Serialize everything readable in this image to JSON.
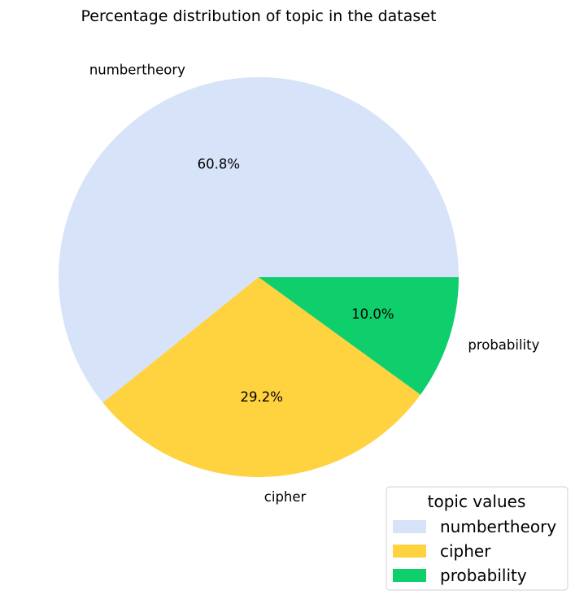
{
  "chart_data": {
    "type": "pie",
    "title": "Percentage distribution of topic in the dataset",
    "categories": [
      "numbertheory",
      "cipher",
      "probability"
    ],
    "values": [
      60.8,
      29.2,
      10.0
    ],
    "value_labels": [
      "60.8%",
      "29.2%",
      "10.0%"
    ],
    "colors": [
      "#d7e3f8",
      "#ffd23f",
      "#0ecf6b"
    ],
    "legend": {
      "title": "topic values",
      "position": "bottom-right",
      "entries": [
        "numbertheory",
        "cipher",
        "probability"
      ]
    }
  }
}
